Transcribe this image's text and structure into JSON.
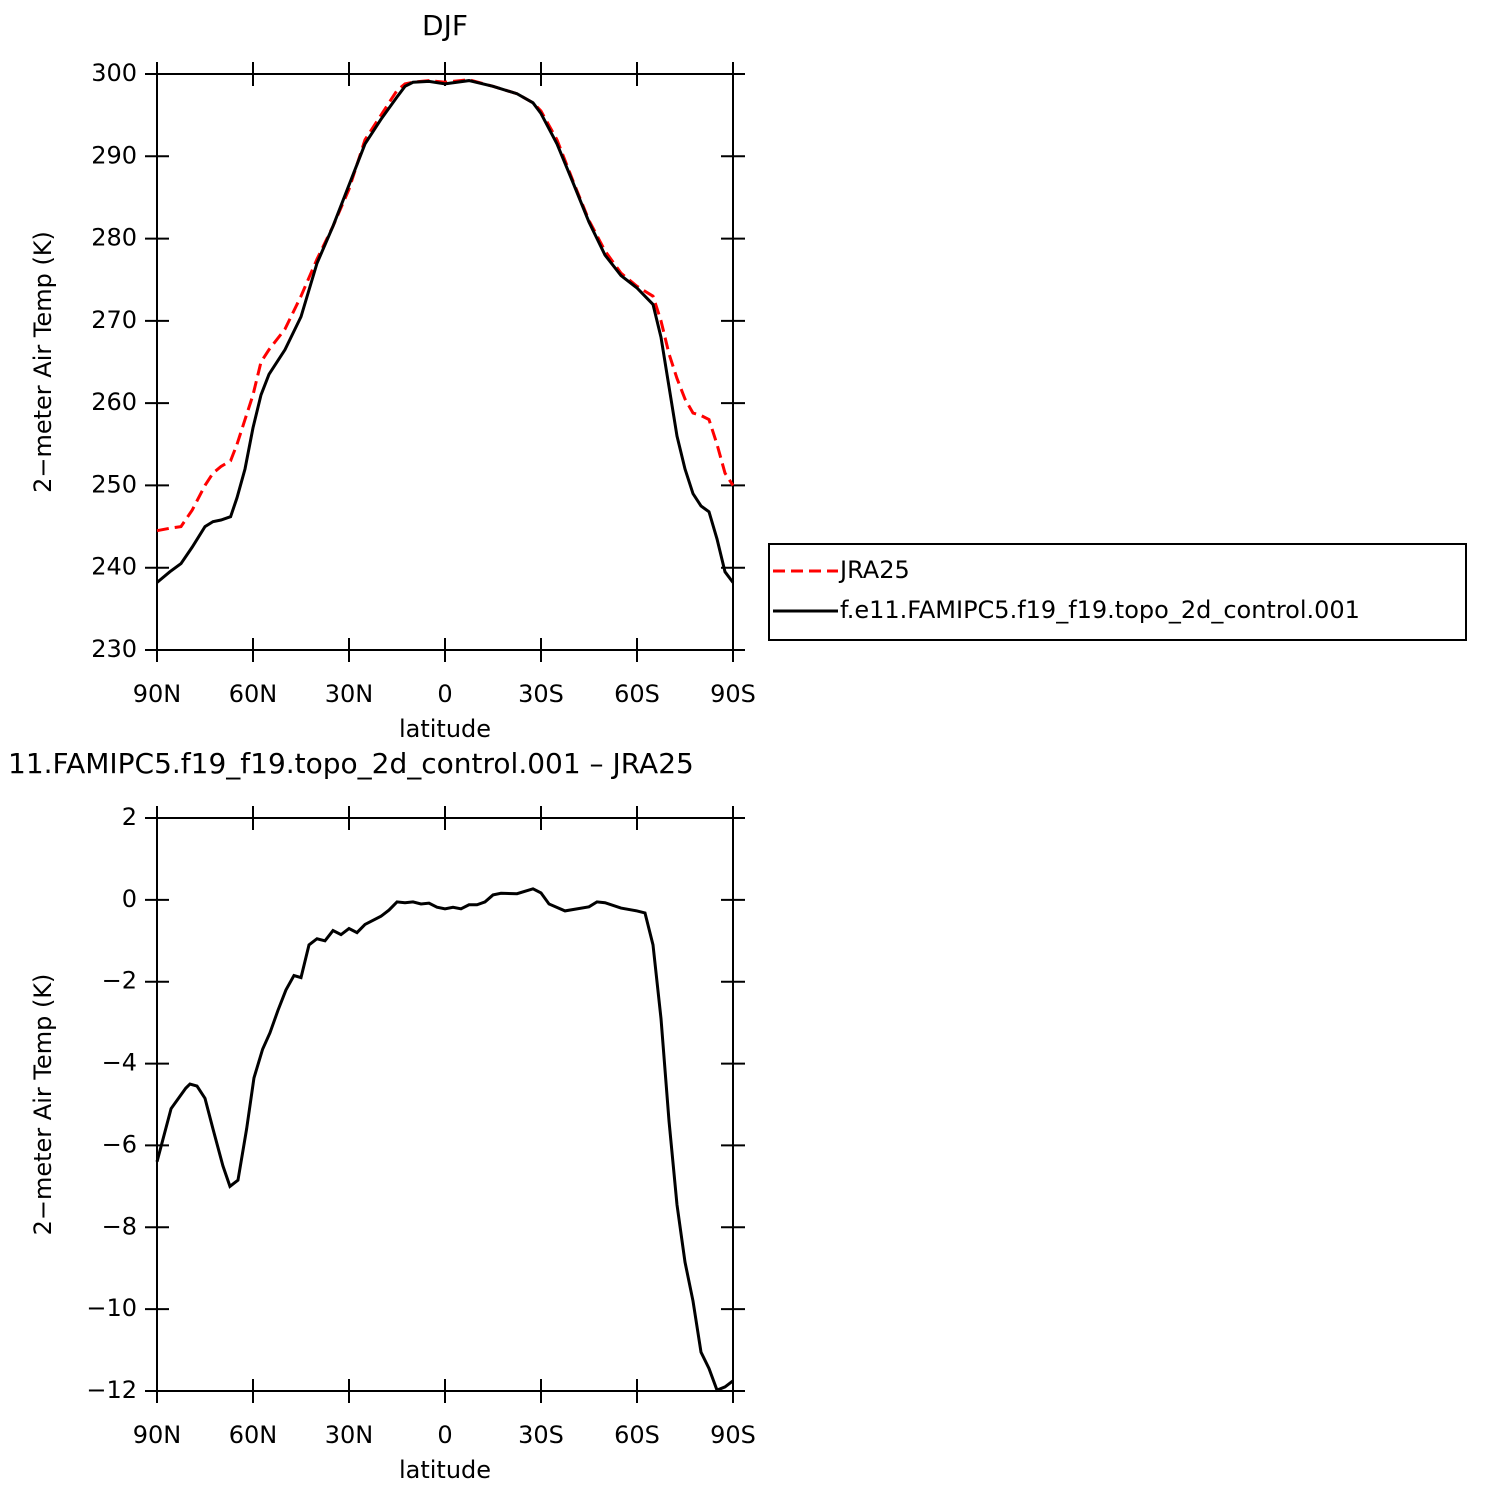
{
  "chart_data": [
    {
      "type": "line",
      "title": "DJF",
      "xlabel": "latitude",
      "ylabel": "2−meter Air Temp (K)",
      "x": [
        90,
        86,
        82.5,
        79,
        75,
        72.5,
        70,
        67,
        65,
        62.5,
        60,
        57.5,
        55,
        50,
        45,
        40,
        35,
        30,
        25,
        20,
        15,
        12.5,
        10,
        5,
        0,
        -7.5,
        -15,
        -22.5,
        -27.5,
        -30,
        -35,
        -40,
        -45,
        -50,
        -55,
        -60,
        -65,
        -67.5,
        -70,
        -72.5,
        -75,
        -77.5,
        -80,
        -82.5,
        -85,
        -87.5,
        -90
      ],
      "series": [
        {
          "name": "JRA25",
          "color": "#ff0000",
          "dashed": true,
          "values": [
            244.5,
            244.8,
            245,
            247,
            250,
            251.5,
            252.3,
            253,
            255,
            258,
            261,
            265,
            266.5,
            269,
            273,
            277.5,
            281.5,
            286,
            292,
            295,
            298,
            298.8,
            299,
            299.2,
            299,
            299.3,
            298.5,
            297.6,
            296.5,
            295.5,
            292,
            287,
            282.2,
            278.5,
            275.8,
            274.2,
            273,
            270,
            266,
            263,
            260.5,
            258.8,
            258.5,
            258,
            255,
            251.5,
            250
          ]
        },
        {
          "name": "f.e11.FAMIPC5.f19_f19.topo_2d_control.001",
          "color": "#000000",
          "dashed": false,
          "values": [
            238.2,
            239.5,
            240.5,
            242.5,
            245,
            245.6,
            245.8,
            246.2,
            248.5,
            252,
            257,
            261,
            263.5,
            266.5,
            270.5,
            277,
            281.5,
            286.5,
            291.5,
            294.5,
            297.2,
            298.5,
            299,
            299.1,
            298.8,
            299.2,
            298.5,
            297.6,
            296.5,
            295.2,
            291.5,
            286.8,
            282,
            278,
            275.5,
            274,
            272,
            268,
            262,
            256,
            252,
            249,
            247.5,
            246.8,
            243.5,
            239.5,
            238.2
          ]
        }
      ],
      "xlim": [
        90,
        -90
      ],
      "xticks": [
        {
          "value": 90,
          "label": "90N"
        },
        {
          "value": 60,
          "label": "60N"
        },
        {
          "value": 30,
          "label": "30N"
        },
        0,
        {
          "value": -30,
          "label": "30S"
        },
        {
          "value": -60,
          "label": "60S"
        },
        {
          "value": -90,
          "label": "90S"
        }
      ],
      "ylim": [
        230,
        300
      ],
      "yticks": [
        230,
        240,
        250,
        260,
        270,
        280,
        290,
        300
      ]
    },
    {
      "type": "line",
      "title": "11.FAMIPC5.f19_f19.topo_2d_control.001 – JRA25",
      "xlabel": "latitude",
      "ylabel": "2−meter Air Temp (K)",
      "x": [
        90,
        85.6,
        81,
        79.7,
        77.5,
        75,
        72.5,
        69.4,
        67.2,
        64.7,
        62,
        59.7,
        57,
        54.7,
        52.2,
        49.7,
        47.2,
        45,
        42.5,
        40,
        37.5,
        35,
        32.5,
        30,
        27.5,
        25,
        20,
        17.5,
        15,
        12.5,
        10,
        7.5,
        5,
        2.5,
        0,
        -2.5,
        -5,
        -7.5,
        -10,
        -12.5,
        -15,
        -17.5,
        -22.5,
        -27.5,
        -30,
        -32.5,
        -37.5,
        -45,
        -47.5,
        -50,
        -55,
        -60,
        -62.5,
        -65,
        -67.5,
        -70,
        -72.5,
        -75,
        -77.5,
        -80,
        -82.5,
        -85,
        -87.5,
        -90
      ],
      "values": [
        -6.4,
        -5.1,
        -4.6,
        -4.5,
        -4.55,
        -4.85,
        -5.6,
        -6.5,
        -7.0,
        -6.85,
        -5.6,
        -4.35,
        -3.65,
        -3.25,
        -2.7,
        -2.2,
        -1.85,
        -1.9,
        -1.1,
        -0.95,
        -1.0,
        -0.75,
        -0.85,
        -0.7,
        -0.8,
        -0.6,
        -0.4,
        -0.25,
        -0.05,
        -0.07,
        -0.05,
        -0.1,
        -0.08,
        -0.18,
        -0.22,
        -0.18,
        -0.22,
        -0.12,
        -0.12,
        -0.05,
        0.12,
        0.16,
        0.15,
        0.27,
        0.17,
        -0.1,
        -0.27,
        -0.17,
        -0.05,
        -0.07,
        -0.2,
        -0.27,
        -0.32,
        -1.1,
        -2.9,
        -5.4,
        -7.45,
        -8.85,
        -9.8,
        -11.05,
        -11.45,
        -11.98,
        -11.9,
        -11.75
      ],
      "color": "#000000",
      "xlim": [
        90,
        -90
      ],
      "xticks": [
        {
          "value": 90,
          "label": "90N"
        },
        {
          "value": 60,
          "label": "60N"
        },
        {
          "value": 30,
          "label": "30N"
        },
        0,
        {
          "value": -30,
          "label": "30S"
        },
        {
          "value": -60,
          "label": "60S"
        },
        {
          "value": -90,
          "label": "90S"
        }
      ],
      "ylim": [
        -12,
        2
      ],
      "yticks": [
        {
          "value": -12,
          "label": "−12"
        },
        {
          "value": -10,
          "label": "−10"
        },
        {
          "value": -8,
          "label": "−8"
        },
        {
          "value": -6,
          "label": "−6"
        },
        {
          "value": -4,
          "label": "−4"
        },
        {
          "value": -2,
          "label": "−2"
        },
        0,
        2
      ]
    }
  ]
}
